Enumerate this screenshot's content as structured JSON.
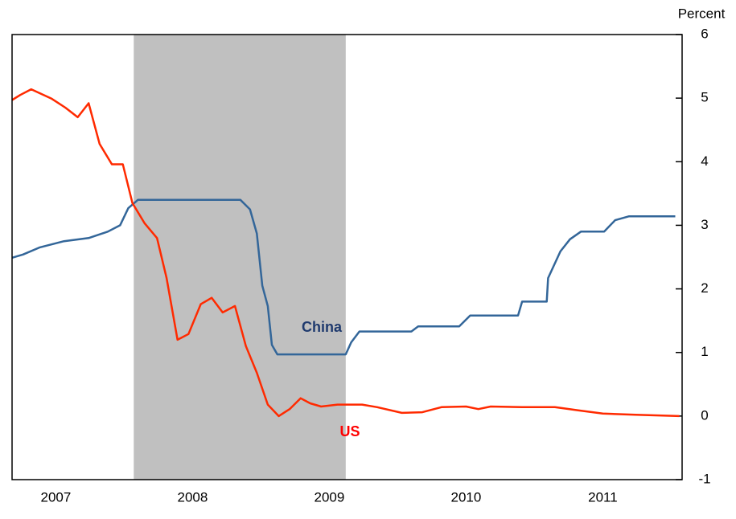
{
  "chart_data": {
    "type": "line",
    "y_label": "Percent",
    "xlim": [
      2007.18,
      2012.08
    ],
    "xticks": [
      {
        "value": 2007.5,
        "label": "2007"
      },
      {
        "value": 2008.5,
        "label": "2008"
      },
      {
        "value": 2009.5,
        "label": "2009"
      },
      {
        "value": 2010.5,
        "label": "2010"
      },
      {
        "value": 2011.5,
        "label": "2011"
      }
    ],
    "ylim": [
      -1,
      6
    ],
    "yticks": [
      -1,
      0,
      1,
      2,
      3,
      4,
      5,
      6
    ],
    "shade": [
      2008.07,
      2009.62
    ],
    "shade_color": "#c0c0c0",
    "series": [
      {
        "name": "China",
        "color": "#336699",
        "label_color": "#1f3a6e",
        "x": [
          2007.18,
          2007.26,
          2007.38,
          2007.56,
          2007.74,
          2007.88,
          2007.97,
          2008.03,
          2008.1,
          2008.85,
          2008.92,
          2008.97,
          2009.01,
          2009.05,
          2009.08,
          2009.12,
          2009.62,
          2009.66,
          2009.72,
          2010.1,
          2010.15,
          2010.45,
          2010.53,
          2010.88,
          2010.91,
          2011.09,
          2011.1,
          2011.19,
          2011.26,
          2011.34,
          2011.51,
          2011.59,
          2011.69,
          2012.03
        ],
        "values": [
          2.49,
          2.54,
          2.65,
          2.75,
          2.8,
          2.9,
          3.0,
          3.27,
          3.4,
          3.4,
          3.25,
          2.87,
          2.05,
          1.73,
          1.12,
          0.97,
          0.97,
          1.16,
          1.33,
          1.33,
          1.41,
          1.41,
          1.58,
          1.58,
          1.8,
          1.8,
          2.17,
          2.59,
          2.78,
          2.9,
          2.9,
          3.08,
          3.14,
          3.14
        ]
      },
      {
        "name": "US",
        "color": "#ff2a00",
        "label_color": "#ff0000",
        "x": [
          2007.18,
          2007.24,
          2007.32,
          2007.47,
          2007.57,
          2007.66,
          2007.74,
          2007.82,
          2007.91,
          2007.99,
          2008.06,
          2008.15,
          2008.24,
          2008.31,
          2008.39,
          2008.47,
          2008.56,
          2008.64,
          2008.72,
          2008.81,
          2008.89,
          2008.97,
          2009.05,
          2009.13,
          2009.21,
          2009.29,
          2009.36,
          2009.44,
          2009.56,
          2009.74,
          2009.85,
          2010.03,
          2010.18,
          2010.32,
          2010.5,
          2010.59,
          2010.68,
          2010.91,
          2011.15,
          2011.32,
          2011.5,
          2011.74,
          2012.06
        ],
        "values": [
          4.97,
          5.05,
          5.14,
          4.99,
          4.85,
          4.7,
          4.92,
          4.28,
          3.96,
          3.96,
          3.35,
          3.03,
          2.8,
          2.17,
          1.2,
          1.29,
          1.76,
          1.86,
          1.63,
          1.73,
          1.1,
          0.68,
          0.18,
          0,
          0.11,
          0.28,
          0.2,
          0.15,
          0.18,
          0.18,
          0.14,
          0.05,
          0.06,
          0.14,
          0.15,
          0.11,
          0.15,
          0.14,
          0.14,
          0.09,
          0.04,
          0.02,
          0
        ]
      }
    ]
  }
}
